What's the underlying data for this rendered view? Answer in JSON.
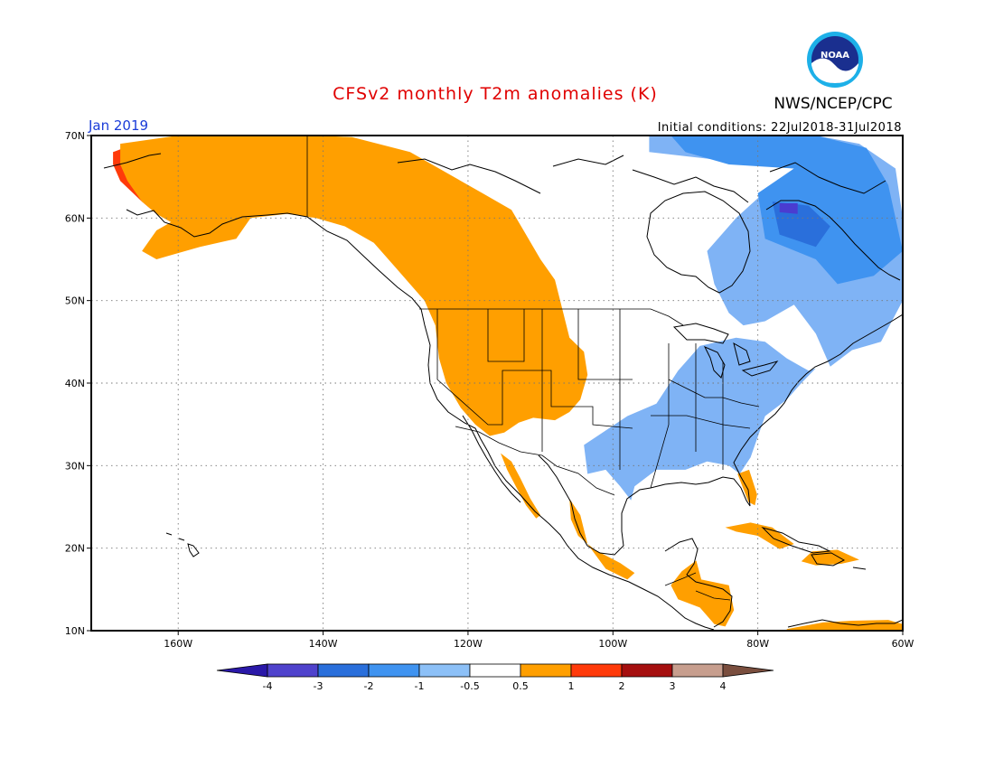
{
  "header": {
    "title": "CFSv2 monthly T2m anomalies (K)",
    "agency": "NWS/NCEP/CPC",
    "month": "Jan 2019",
    "initial_conditions": "Initial conditions: 22Jul2018-31Jul2018",
    "logo_text": "NOAA"
  },
  "map": {
    "lon_range": [
      -172,
      -60
    ],
    "lat_range": [
      10,
      70
    ],
    "lat_ticks": [
      {
        "value": 70,
        "label": "70N"
      },
      {
        "value": 60,
        "label": "60N"
      },
      {
        "value": 50,
        "label": "50N"
      },
      {
        "value": 40,
        "label": "40N"
      },
      {
        "value": 30,
        "label": "30N"
      },
      {
        "value": 20,
        "label": "20N"
      },
      {
        "value": 10,
        "label": "10N"
      }
    ],
    "lon_ticks": [
      {
        "value": -160,
        "label": "160W"
      },
      {
        "value": -140,
        "label": "140W"
      },
      {
        "value": -120,
        "label": "120W"
      },
      {
        "value": -100,
        "label": "100W"
      },
      {
        "value": -80,
        "label": "80W"
      },
      {
        "value": -60,
        "label": "60W"
      }
    ],
    "grid": "dotted",
    "anomaly_regions": [
      {
        "name": "alaska",
        "class": "1 to 2",
        "color": "#ff3a0a",
        "points": [
          [
            -169,
            68
          ],
          [
            -166,
            69
          ],
          [
            -161,
            68.5
          ],
          [
            -155,
            66.8
          ],
          [
            -150,
            65.4
          ],
          [
            -152,
            63
          ],
          [
            -157,
            61.5
          ],
          [
            -163,
            60.5
          ],
          [
            -165,
            62
          ],
          [
            -168,
            64.5
          ],
          [
            -169,
            66.5
          ]
        ]
      },
      {
        "name": "western-canada-alaska",
        "class": "0.5 to 1",
        "color": "#ff9f00",
        "points": [
          [
            -168,
            69
          ],
          [
            -160,
            70
          ],
          [
            -150,
            70
          ],
          [
            -141,
            70
          ],
          [
            -136,
            69.8
          ],
          [
            -128,
            68
          ],
          [
            -124,
            66
          ],
          [
            -118,
            63
          ],
          [
            -114,
            61
          ],
          [
            -112,
            58
          ],
          [
            -110,
            55
          ],
          [
            -108,
            52.5
          ],
          [
            -107,
            49
          ],
          [
            -106,
            45.5
          ],
          [
            -104,
            43.8
          ],
          [
            -103.5,
            41
          ],
          [
            -104.5,
            38
          ],
          [
            -106,
            36.5
          ],
          [
            -108,
            35.5
          ],
          [
            -111,
            35.8
          ],
          [
            -113,
            35.2
          ],
          [
            -115,
            34
          ],
          [
            -117,
            33.6
          ],
          [
            -119,
            35
          ],
          [
            -121,
            37
          ],
          [
            -123,
            40
          ],
          [
            -124,
            43
          ],
          [
            -124.5,
            47
          ],
          [
            -126,
            50
          ],
          [
            -130,
            54
          ],
          [
            -133,
            57
          ],
          [
            -137,
            59
          ],
          [
            -141,
            60
          ],
          [
            -145,
            60.5
          ],
          [
            -150,
            60
          ],
          [
            -152,
            57.5
          ],
          [
            -157,
            56.5
          ],
          [
            -161,
            55.5
          ],
          [
            -163,
            55
          ],
          [
            -165,
            56
          ],
          [
            -163,
            58.5
          ],
          [
            -161,
            59.5
          ],
          [
            -163,
            60.5
          ],
          [
            -165,
            62
          ],
          [
            -167,
            64.5
          ],
          [
            -168,
            66.5
          ]
        ]
      },
      {
        "name": "baja-california",
        "class": "0.5 to 1",
        "color": "#ff9f00",
        "points": [
          [
            -115.5,
            31.5
          ],
          [
            -114,
            30.5
          ],
          [
            -112.8,
            28.5
          ],
          [
            -111.4,
            26
          ],
          [
            -110,
            24
          ],
          [
            -110.6,
            23.6
          ],
          [
            -112,
            25.2
          ],
          [
            -113.4,
            27.5
          ],
          [
            -114.6,
            29.5
          ]
        ]
      },
      {
        "name": "western-mexico",
        "class": "0.5 to 1",
        "color": "#ff9f00",
        "points": [
          [
            -106,
            26
          ],
          [
            -104.5,
            24
          ],
          [
            -103.5,
            20.5
          ],
          [
            -101,
            17.5
          ],
          [
            -98,
            16.2
          ],
          [
            -97,
            17
          ],
          [
            -99,
            18.2
          ],
          [
            -102.5,
            19.8
          ],
          [
            -104.8,
            21.5
          ],
          [
            -105.8,
            23.5
          ]
        ]
      },
      {
        "name": "central-america",
        "class": "0.5 to 1",
        "color": "#ff9f00",
        "points": [
          [
            -92,
            15.5
          ],
          [
            -90.5,
            17.2
          ],
          [
            -88.5,
            18.5
          ],
          [
            -87.8,
            16.2
          ],
          [
            -84,
            15.5
          ],
          [
            -83.3,
            12.5
          ],
          [
            -84.5,
            10.5
          ],
          [
            -86,
            10.8
          ],
          [
            -88,
            12.8
          ],
          [
            -91,
            13.8
          ]
        ]
      },
      {
        "name": "caribbean-south",
        "class": "0.5 to 1",
        "color": "#ff9f00",
        "points": [
          [
            -76,
            10.2
          ],
          [
            -71,
            11
          ],
          [
            -67,
            11.2
          ],
          [
            -62,
            11.3
          ],
          [
            -60,
            10.8
          ],
          [
            -60,
            10
          ],
          [
            -76,
            10
          ]
        ]
      },
      {
        "name": "hispaniola-pr",
        "class": "0.5 to 1",
        "color": "#ff9f00",
        "points": [
          [
            -72.5,
            19.6
          ],
          [
            -69,
            19.8
          ],
          [
            -66,
            18.6
          ],
          [
            -68.5,
            18.1
          ],
          [
            -72,
            17.9
          ],
          [
            -74,
            18.4
          ]
        ]
      },
      {
        "name": "cuba",
        "class": "0.5 to 1",
        "color": "#ff9f00",
        "points": [
          [
            -84.5,
            22.5
          ],
          [
            -81,
            23.1
          ],
          [
            -78,
            22.5
          ],
          [
            -75,
            20.5
          ],
          [
            -77,
            19.9
          ],
          [
            -80,
            21.5
          ],
          [
            -83,
            22
          ]
        ]
      },
      {
        "name": "florida",
        "class": "0.5 to 1",
        "color": "#ff9f00",
        "points": [
          [
            -82.8,
            29
          ],
          [
            -81.2,
            29.5
          ],
          [
            -80.1,
            26.5
          ],
          [
            -80.4,
            25.2
          ],
          [
            -81.3,
            25.6
          ]
        ]
      },
      {
        "name": "east-canada",
        "class": "-0.5 to -1",
        "color": "#7fb3f5",
        "points": [
          [
            -95,
            70
          ],
          [
            -80,
            70
          ],
          [
            -72,
            70
          ],
          [
            -66,
            69
          ],
          [
            -61,
            66
          ],
          [
            -60,
            60
          ],
          [
            -60,
            50
          ],
          [
            -63,
            45
          ],
          [
            -67,
            44
          ],
          [
            -70,
            42
          ],
          [
            -72,
            46
          ],
          [
            -75,
            49.5
          ],
          [
            -79,
            47.5
          ],
          [
            -82,
            47
          ],
          [
            -84,
            48.5
          ],
          [
            -86,
            52
          ],
          [
            -87,
            56
          ],
          [
            -83,
            60
          ],
          [
            -78,
            64
          ],
          [
            -75,
            66
          ],
          [
            -85,
            67
          ],
          [
            -95,
            68
          ]
        ]
      },
      {
        "name": "hudson-bay-east",
        "class": "-1 to -2",
        "color": "#3f93f0",
        "points": [
          [
            -92,
            70
          ],
          [
            -72,
            70
          ],
          [
            -65,
            68.5
          ],
          [
            -62,
            64
          ],
          [
            -60,
            56
          ],
          [
            -64,
            53
          ],
          [
            -69,
            52
          ],
          [
            -72,
            55
          ],
          [
            -79,
            57.5
          ],
          [
            -80,
            63
          ],
          [
            -75,
            66
          ],
          [
            -84,
            66.5
          ],
          [
            -90,
            68
          ]
        ]
      },
      {
        "name": "ungava",
        "class": "-2 to -3",
        "color": "#2a6fdb",
        "points": [
          [
            -78,
            62
          ],
          [
            -73,
            61.5
          ],
          [
            -70,
            59
          ],
          [
            -72,
            56.5
          ],
          [
            -77,
            58
          ]
        ]
      },
      {
        "name": "ungava-core",
        "class": "-3 to -4",
        "color": "#4a3cd0",
        "points": [
          [
            -77,
            61.8
          ],
          [
            -74.5,
            61.8
          ],
          [
            -74.5,
            60.5
          ],
          [
            -77,
            60.7
          ]
        ]
      },
      {
        "name": "us-southeast",
        "class": "-0.5 to -1",
        "color": "#7fb3f5",
        "points": [
          [
            -104,
            32.5
          ],
          [
            -98,
            36
          ],
          [
            -94,
            37.5
          ],
          [
            -91,
            41.5
          ],
          [
            -88,
            44.5
          ],
          [
            -83,
            45.5
          ],
          [
            -79,
            45
          ],
          [
            -76,
            43
          ],
          [
            -73,
            41.5
          ],
          [
            -72,
            41.8
          ],
          [
            -74,
            40
          ],
          [
            -76,
            38
          ],
          [
            -79,
            36
          ],
          [
            -80,
            33.5
          ],
          [
            -81,
            31
          ],
          [
            -82.5,
            29
          ],
          [
            -84,
            30
          ],
          [
            -87,
            30.5
          ],
          [
            -90,
            29.5
          ],
          [
            -94,
            29.5
          ],
          [
            -97,
            27.5
          ],
          [
            -97.5,
            25.8
          ],
          [
            -99,
            27.5
          ],
          [
            -101,
            29.5
          ],
          [
            -103.5,
            29
          ]
        ]
      }
    ],
    "color_bar": {
      "labels": [
        "-4",
        "-3",
        "-2",
        "-1",
        "-0.5",
        "0.5",
        "1",
        "2",
        "3",
        "4"
      ],
      "colors": [
        "#2a18a8",
        "#4f42cc",
        "#2a6fdb",
        "#3f93f0",
        "#8cc0f7",
        "#ffffff",
        "#ff9f00",
        "#ff3a0a",
        "#a50f0f",
        "#c79e8e",
        "#7a4e3e"
      ]
    }
  }
}
